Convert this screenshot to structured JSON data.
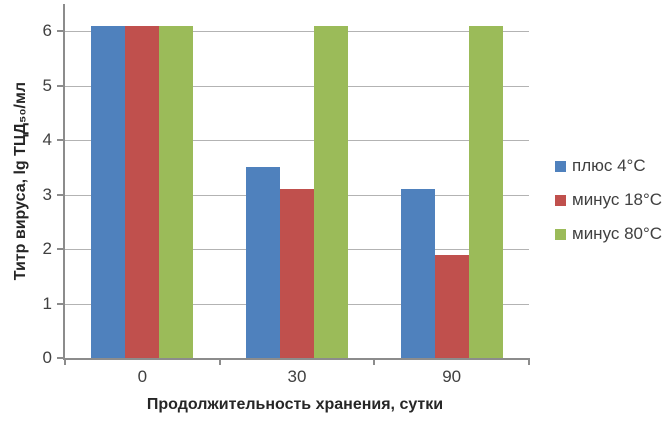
{
  "chart_data": {
    "type": "bar",
    "title": "",
    "categories": [
      "0",
      "30",
      "90"
    ],
    "series": [
      {
        "name": "плюс 4°C",
        "color": "#4F81BD",
        "values": [
          6.1,
          3.5,
          3.1
        ]
      },
      {
        "name": "минус 18°C",
        "color": "#C0504D",
        "values": [
          6.1,
          3.1,
          1.9
        ]
      },
      {
        "name": "минус 80°C",
        "color": "#9BBB59",
        "values": [
          6.1,
          6.1,
          6.1
        ]
      }
    ],
    "xlabel": "Продолжительность хранения, сутки",
    "ylabel": "Титр вируса, lg ТЦД₅₀/мл",
    "ylim": [
      0,
      6.5
    ],
    "yticks": [
      0,
      1,
      2,
      3,
      4,
      5,
      6
    ],
    "grid": true,
    "legend_position": "right",
    "colors": {
      "gridline": "#b3b3b3",
      "axis": "#8c8c8c",
      "tick_text": "#404040",
      "title_text": "#262626"
    }
  }
}
